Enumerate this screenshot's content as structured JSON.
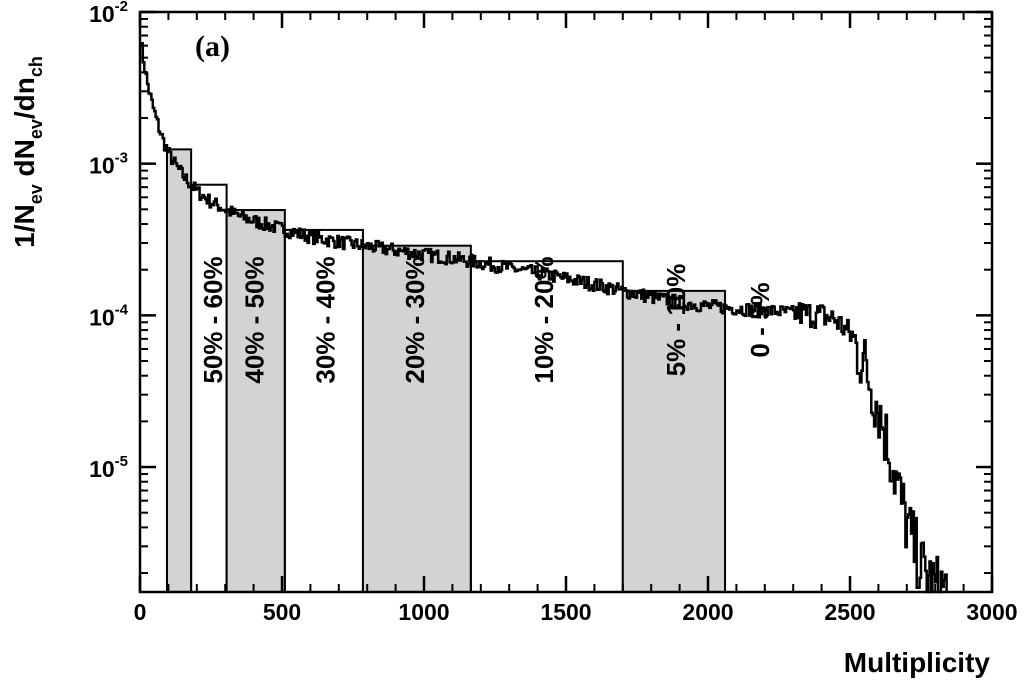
{
  "chart_data": {
    "type": "histogram",
    "panel_label": "(a)",
    "xlabel": "Multiplicity",
    "ylabel": {
      "base": "1/N",
      "sub1": "ev",
      "mid": " dN",
      "sub2": "ev",
      "mid2": "/dn",
      "sub3": "ch"
    },
    "xscale": "linear",
    "yscale": "log",
    "xlim": [
      0,
      3000
    ],
    "ylim": [
      1.5e-06,
      0.01
    ],
    "x_ticks": [
      {
        "value": 0,
        "label": "0"
      },
      {
        "value": 500,
        "label": "500"
      },
      {
        "value": 1000,
        "label": "1000"
      },
      {
        "value": 1500,
        "label": "1500"
      },
      {
        "value": 2000,
        "label": "2000"
      },
      {
        "value": 2500,
        "label": "2500"
      },
      {
        "value": 3000,
        "label": "3000"
      }
    ],
    "y_ticks": [
      {
        "value": 1e-05,
        "base": "10",
        "exp": "-5"
      },
      {
        "value": 0.0001,
        "base": "10",
        "exp": "-4"
      },
      {
        "value": 0.001,
        "base": "10",
        "exp": "-3"
      },
      {
        "value": 0.01,
        "base": "10",
        "exp": "-2"
      }
    ],
    "centrality_bins": [
      {
        "label": "50% - 60%",
        "x_min": 95,
        "x_max": 180,
        "shaded": true
      },
      {
        "label": "40% - 50%",
        "x_min": 180,
        "x_max": 305,
        "shaded": false
      },
      {
        "label": "30% - 40%",
        "x_min": 305,
        "x_max": 510,
        "shaded": true
      },
      {
        "label": "20% - 30%",
        "x_min": 510,
        "x_max": 785,
        "shaded": false
      },
      {
        "label": "10% - 20%",
        "x_min": 785,
        "x_max": 1165,
        "shaded": true
      },
      {
        "label": "5% - 10%",
        "x_min": 1165,
        "x_max": 1700,
        "shaded": false
      },
      {
        "label": "0 - 5%",
        "x_min": 1700,
        "x_max": 2060,
        "shaded": true
      }
    ],
    "band_label_positions": [
      {
        "text": "50% - 60%",
        "x": 265,
        "y_frac": 0.4
      },
      {
        "text": "40% - 50%",
        "x": 410,
        "y_frac": 0.4
      },
      {
        "text": "30% - 40%",
        "x": 660,
        "y_frac": 0.4
      },
      {
        "text": "20% - 30%",
        "x": 975,
        "y_frac": 0.4
      },
      {
        "text": "10% - 20%",
        "x": 1430,
        "y_frac": 0.4
      },
      {
        "text": "5% - 10%",
        "x": 1895,
        "y_frac": 0.4
      },
      {
        "text": "0 - 5%",
        "x": 2190,
        "y_frac": 0.4
      }
    ],
    "distribution_points": [
      [
        0,
        0.0075
      ],
      [
        10,
        0.0052
      ],
      [
        25,
        0.0035
      ],
      [
        40,
        0.0026
      ],
      [
        60,
        0.0019
      ],
      [
        80,
        0.00145
      ],
      [
        100,
        0.00118
      ],
      [
        130,
        0.00095
      ],
      [
        160,
        0.0008
      ],
      [
        200,
        0.00066
      ],
      [
        250,
        0.00056
      ],
      [
        300,
        0.0005
      ],
      [
        350,
        0.00045
      ],
      [
        400,
        0.00042
      ],
      [
        500,
        0.00037
      ],
      [
        600,
        0.00033
      ],
      [
        700,
        0.000305
      ],
      [
        800,
        0.000285
      ],
      [
        900,
        0.000268
      ],
      [
        1000,
        0.000252
      ],
      [
        1100,
        0.000238
      ],
      [
        1200,
        0.000222
      ],
      [
        1300,
        0.000205
      ],
      [
        1400,
        0.00019
      ],
      [
        1500,
        0.000175
      ],
      [
        1600,
        0.00016
      ],
      [
        1700,
        0.000145
      ],
      [
        1800,
        0.000132
      ],
      [
        1900,
        0.000122
      ],
      [
        2000,
        0.000115
      ],
      [
        2100,
        0.000111
      ],
      [
        2200,
        0.000108
      ],
      [
        2300,
        0.000104
      ],
      [
        2400,
        0.0001
      ],
      [
        2450,
        9.4e-05
      ],
      [
        2500,
        7.5e-05
      ],
      [
        2550,
        4.8e-05
      ],
      [
        2600,
        2.5e-05
      ],
      [
        2650,
        1.05e-05
      ],
      [
        2700,
        4.2e-06
      ],
      [
        2750,
        2.2e-06
      ],
      [
        2800,
        1.6e-06
      ]
    ],
    "bar_fill": "#d3d3d3",
    "line_color": "#000000"
  }
}
